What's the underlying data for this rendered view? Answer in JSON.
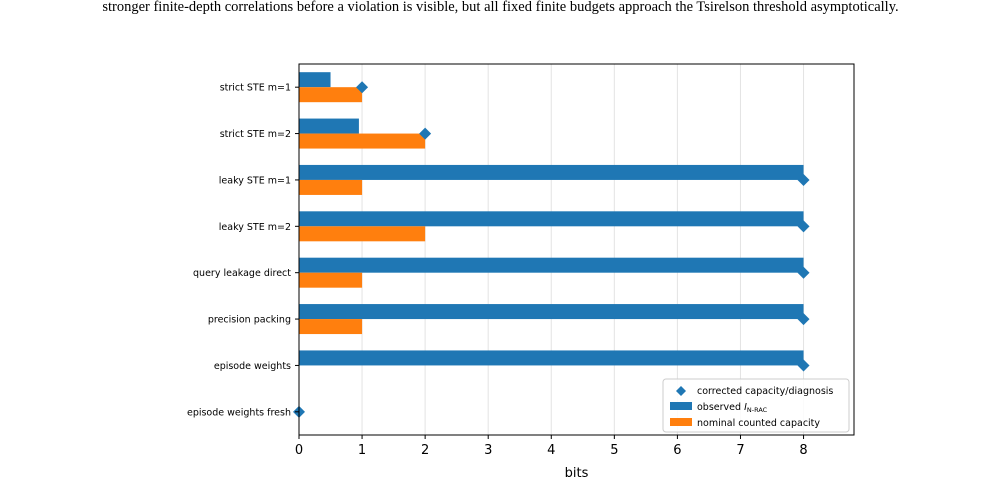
{
  "caption": "stronger finite-depth correlations before a violation is visible, but all fixed finite budgets approach the Tsirelson threshold asymptotically.",
  "chart_data": {
    "type": "bar",
    "orientation": "horizontal",
    "categories": [
      "strict STE m=1",
      "strict STE m=2",
      "leaky STE m=1",
      "leaky STE m=2",
      "query leakage direct",
      "precision packing",
      "episode weights",
      "episode weights fresh"
    ],
    "series": [
      {
        "name": "observed",
        "subscript": "N-RAC",
        "color": "#1f77b4",
        "values": [
          0.5,
          0.95,
          8,
          8,
          8,
          8,
          8,
          0
        ]
      },
      {
        "name": "nominal counted capacity",
        "color": "#ff7f0e",
        "values": [
          1,
          2,
          1,
          2,
          1,
          1,
          0,
          0
        ]
      }
    ],
    "markers": {
      "name": "corrected capacity/diagnosis",
      "color": "#1f77b4",
      "values": [
        1,
        2,
        8,
        8,
        8,
        8,
        8,
        0
      ]
    },
    "xlabel": "bits",
    "xticks": [
      "0",
      "1",
      "2",
      "3",
      "4",
      "5",
      "6",
      "7",
      "8"
    ],
    "xlim": [
      0,
      8.8
    ],
    "grid": "vertical",
    "legend_position": "lower-right"
  }
}
